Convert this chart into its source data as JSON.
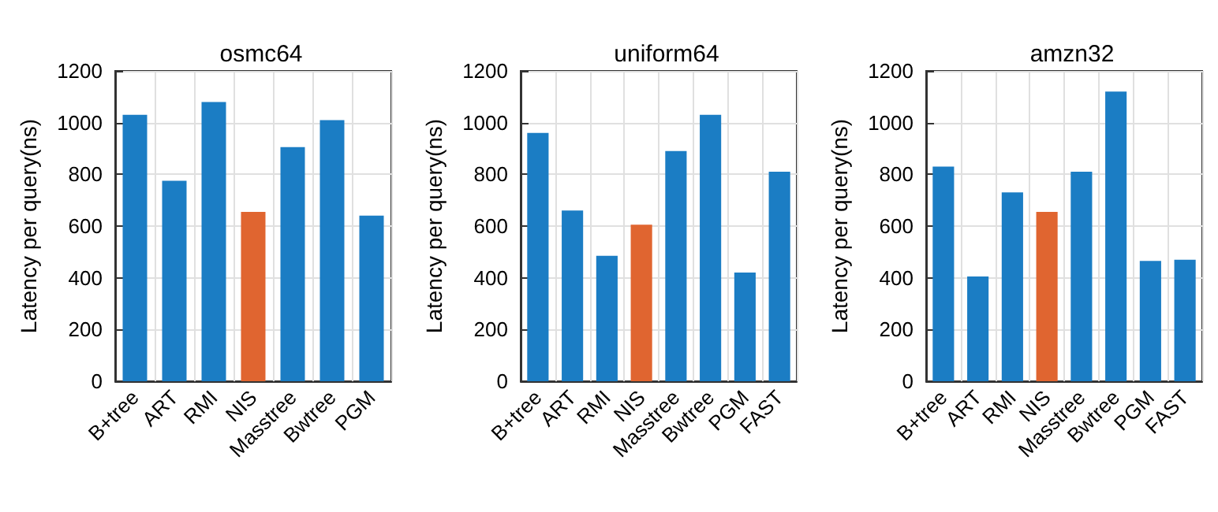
{
  "chart_data": [
    {
      "type": "bar",
      "title": "osmc64",
      "ylabel": "Latency per query(ns)",
      "categories": [
        "B+tree",
        "ART",
        "RMI",
        "NIS",
        "Masstree",
        "Bwtree",
        "PGM"
      ],
      "values": [
        1030,
        775,
        1080,
        655,
        905,
        1010,
        640
      ],
      "colors": [
        "#1b7dc4",
        "#1b7dc4",
        "#1b7dc4",
        "#e06530",
        "#1b7dc4",
        "#1b7dc4",
        "#1b7dc4"
      ],
      "ylim": [
        0,
        1200
      ],
      "yticks": [
        0,
        200,
        400,
        600,
        800,
        1000,
        1200
      ],
      "grid": true
    },
    {
      "type": "bar",
      "title": "uniform64",
      "ylabel": "Latency per query(ns)",
      "categories": [
        "B+tree",
        "ART",
        "RMI",
        "NIS",
        "Masstree",
        "Bwtree",
        "PGM",
        "FAST"
      ],
      "values": [
        960,
        660,
        485,
        605,
        890,
        1030,
        420,
        810
      ],
      "colors": [
        "#1b7dc4",
        "#1b7dc4",
        "#1b7dc4",
        "#e06530",
        "#1b7dc4",
        "#1b7dc4",
        "#1b7dc4",
        "#1b7dc4"
      ],
      "ylim": [
        0,
        1200
      ],
      "yticks": [
        0,
        200,
        400,
        600,
        800,
        1000,
        1200
      ],
      "grid": true
    },
    {
      "type": "bar",
      "title": "amzn32",
      "ylabel": "Latency per query(ns)",
      "categories": [
        "B+tree",
        "ART",
        "RMI",
        "NIS",
        "Masstree",
        "Bwtree",
        "PGM",
        "FAST"
      ],
      "values": [
        830,
        405,
        730,
        655,
        810,
        1120,
        465,
        470
      ],
      "colors": [
        "#1b7dc4",
        "#1b7dc4",
        "#1b7dc4",
        "#e06530",
        "#1b7dc4",
        "#1b7dc4",
        "#1b7dc4",
        "#1b7dc4"
      ],
      "ylim": [
        0,
        1200
      ],
      "yticks": [
        0,
        200,
        400,
        600,
        800,
        1000,
        1200
      ],
      "grid": true
    }
  ]
}
